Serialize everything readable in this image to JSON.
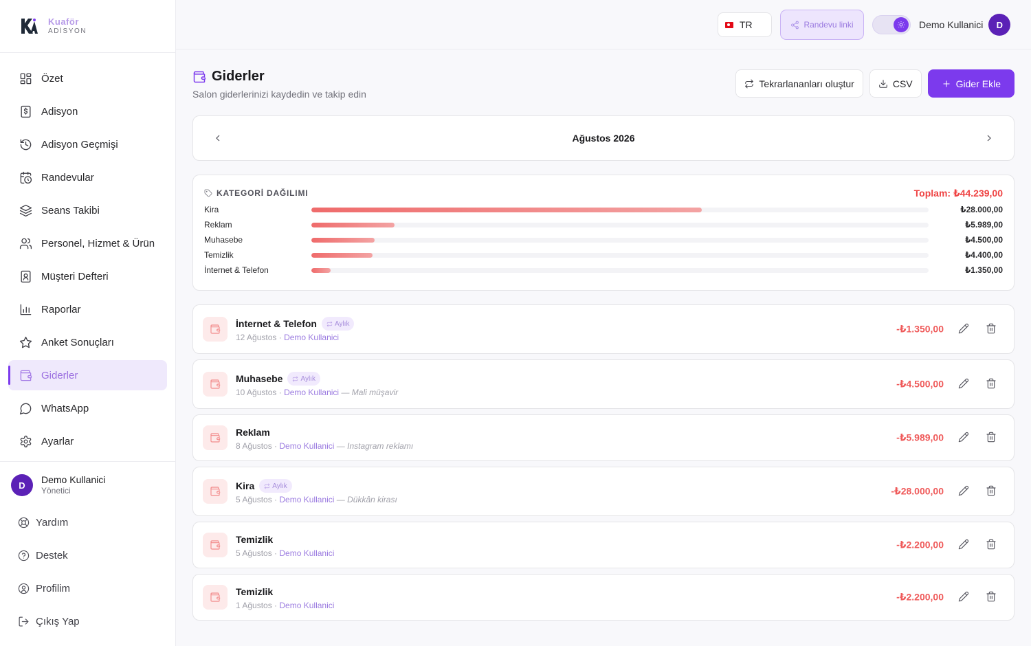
{
  "app": {
    "logo_top": "Kuaför",
    "logo_bottom": "ADİSYON"
  },
  "sidebar": {
    "items": [
      {
        "label": "Özet",
        "icon": "grid-icon"
      },
      {
        "label": "Adisyon",
        "icon": "receipt-icon"
      },
      {
        "label": "Adisyon Geçmişi",
        "icon": "history-icon"
      },
      {
        "label": "Randevular",
        "icon": "calendar-clock-icon"
      },
      {
        "label": "Seans Takibi",
        "icon": "layers-icon"
      },
      {
        "label": "Personel, Hizmet & Ürün",
        "icon": "users-icon"
      },
      {
        "label": "Müşteri Defteri",
        "icon": "contact-book-icon"
      },
      {
        "label": "Raporlar",
        "icon": "bar-chart-icon"
      },
      {
        "label": "Anket Sonuçları",
        "icon": "star-icon"
      },
      {
        "label": "Giderler",
        "icon": "wallet-icon",
        "active": true
      },
      {
        "label": "WhatsApp",
        "icon": "chat-icon"
      },
      {
        "label": "Ayarlar",
        "icon": "gear-icon"
      }
    ],
    "user": {
      "initial": "D",
      "name": "Demo Kullanici",
      "role": "Yönetici"
    },
    "bottom": [
      {
        "label": "Yardım",
        "icon": "lifebuoy-icon"
      },
      {
        "label": "Destek",
        "icon": "help-circle-icon"
      },
      {
        "label": "Profilim",
        "icon": "user-circle-icon"
      },
      {
        "label": "Çıkış Yap",
        "icon": "logout-icon"
      }
    ]
  },
  "topbar": {
    "language": "TR",
    "appointment_link": "Randevu linki",
    "user_name": "Demo Kullanici",
    "user_initial": "D"
  },
  "page": {
    "title": "Giderler",
    "subtitle": "Salon giderlerinizi kaydedin ve takip edin",
    "actions": {
      "recurring": "Tekrarlananları oluştur",
      "csv": "CSV",
      "add": "Gider Ekle"
    },
    "month": "Ağustos 2026"
  },
  "categories": {
    "title": "KATEGORİ DAĞILIMI",
    "total": "Toplam: ₺44.239,00",
    "rows": [
      {
        "name": "Kira",
        "amount": "₺28.000,00",
        "share": 0.633
      },
      {
        "name": "Reklam",
        "amount": "₺5.989,00",
        "share": 0.135
      },
      {
        "name": "Muhasebe",
        "amount": "₺4.500,00",
        "share": 0.102
      },
      {
        "name": "Temizlik",
        "amount": "₺4.400,00",
        "share": 0.099
      },
      {
        "name": "İnternet & Telefon",
        "amount": "₺1.350,00",
        "share": 0.031
      }
    ]
  },
  "expenses": [
    {
      "title": "İnternet & Telefon",
      "badge": "Aylık",
      "date": "12 Ağustos",
      "user": "Demo Kullanici",
      "note": "",
      "amount": "-₺1.350,00"
    },
    {
      "title": "Muhasebe",
      "badge": "Aylık",
      "date": "10 Ağustos",
      "user": "Demo Kullanici",
      "note": "Mali müşavir",
      "amount": "-₺4.500,00"
    },
    {
      "title": "Reklam",
      "badge": "",
      "date": "8 Ağustos",
      "user": "Demo Kullanici",
      "note": "Instagram reklamı",
      "amount": "-₺5.989,00"
    },
    {
      "title": "Kira",
      "badge": "Aylık",
      "date": "5 Ağustos",
      "user": "Demo Kullanici",
      "note": "Dükkân kirası",
      "amount": "-₺28.000,00"
    },
    {
      "title": "Temizlik",
      "badge": "",
      "date": "5 Ağustos",
      "user": "Demo Kullanici",
      "note": "",
      "amount": "-₺2.200,00"
    },
    {
      "title": "Temizlik",
      "badge": "",
      "date": "1 Ağustos",
      "user": "Demo Kullanici",
      "note": "",
      "amount": "-₺2.200,00"
    }
  ],
  "colors": {
    "accent": "#7c3aed",
    "expense": "#ef4444"
  }
}
